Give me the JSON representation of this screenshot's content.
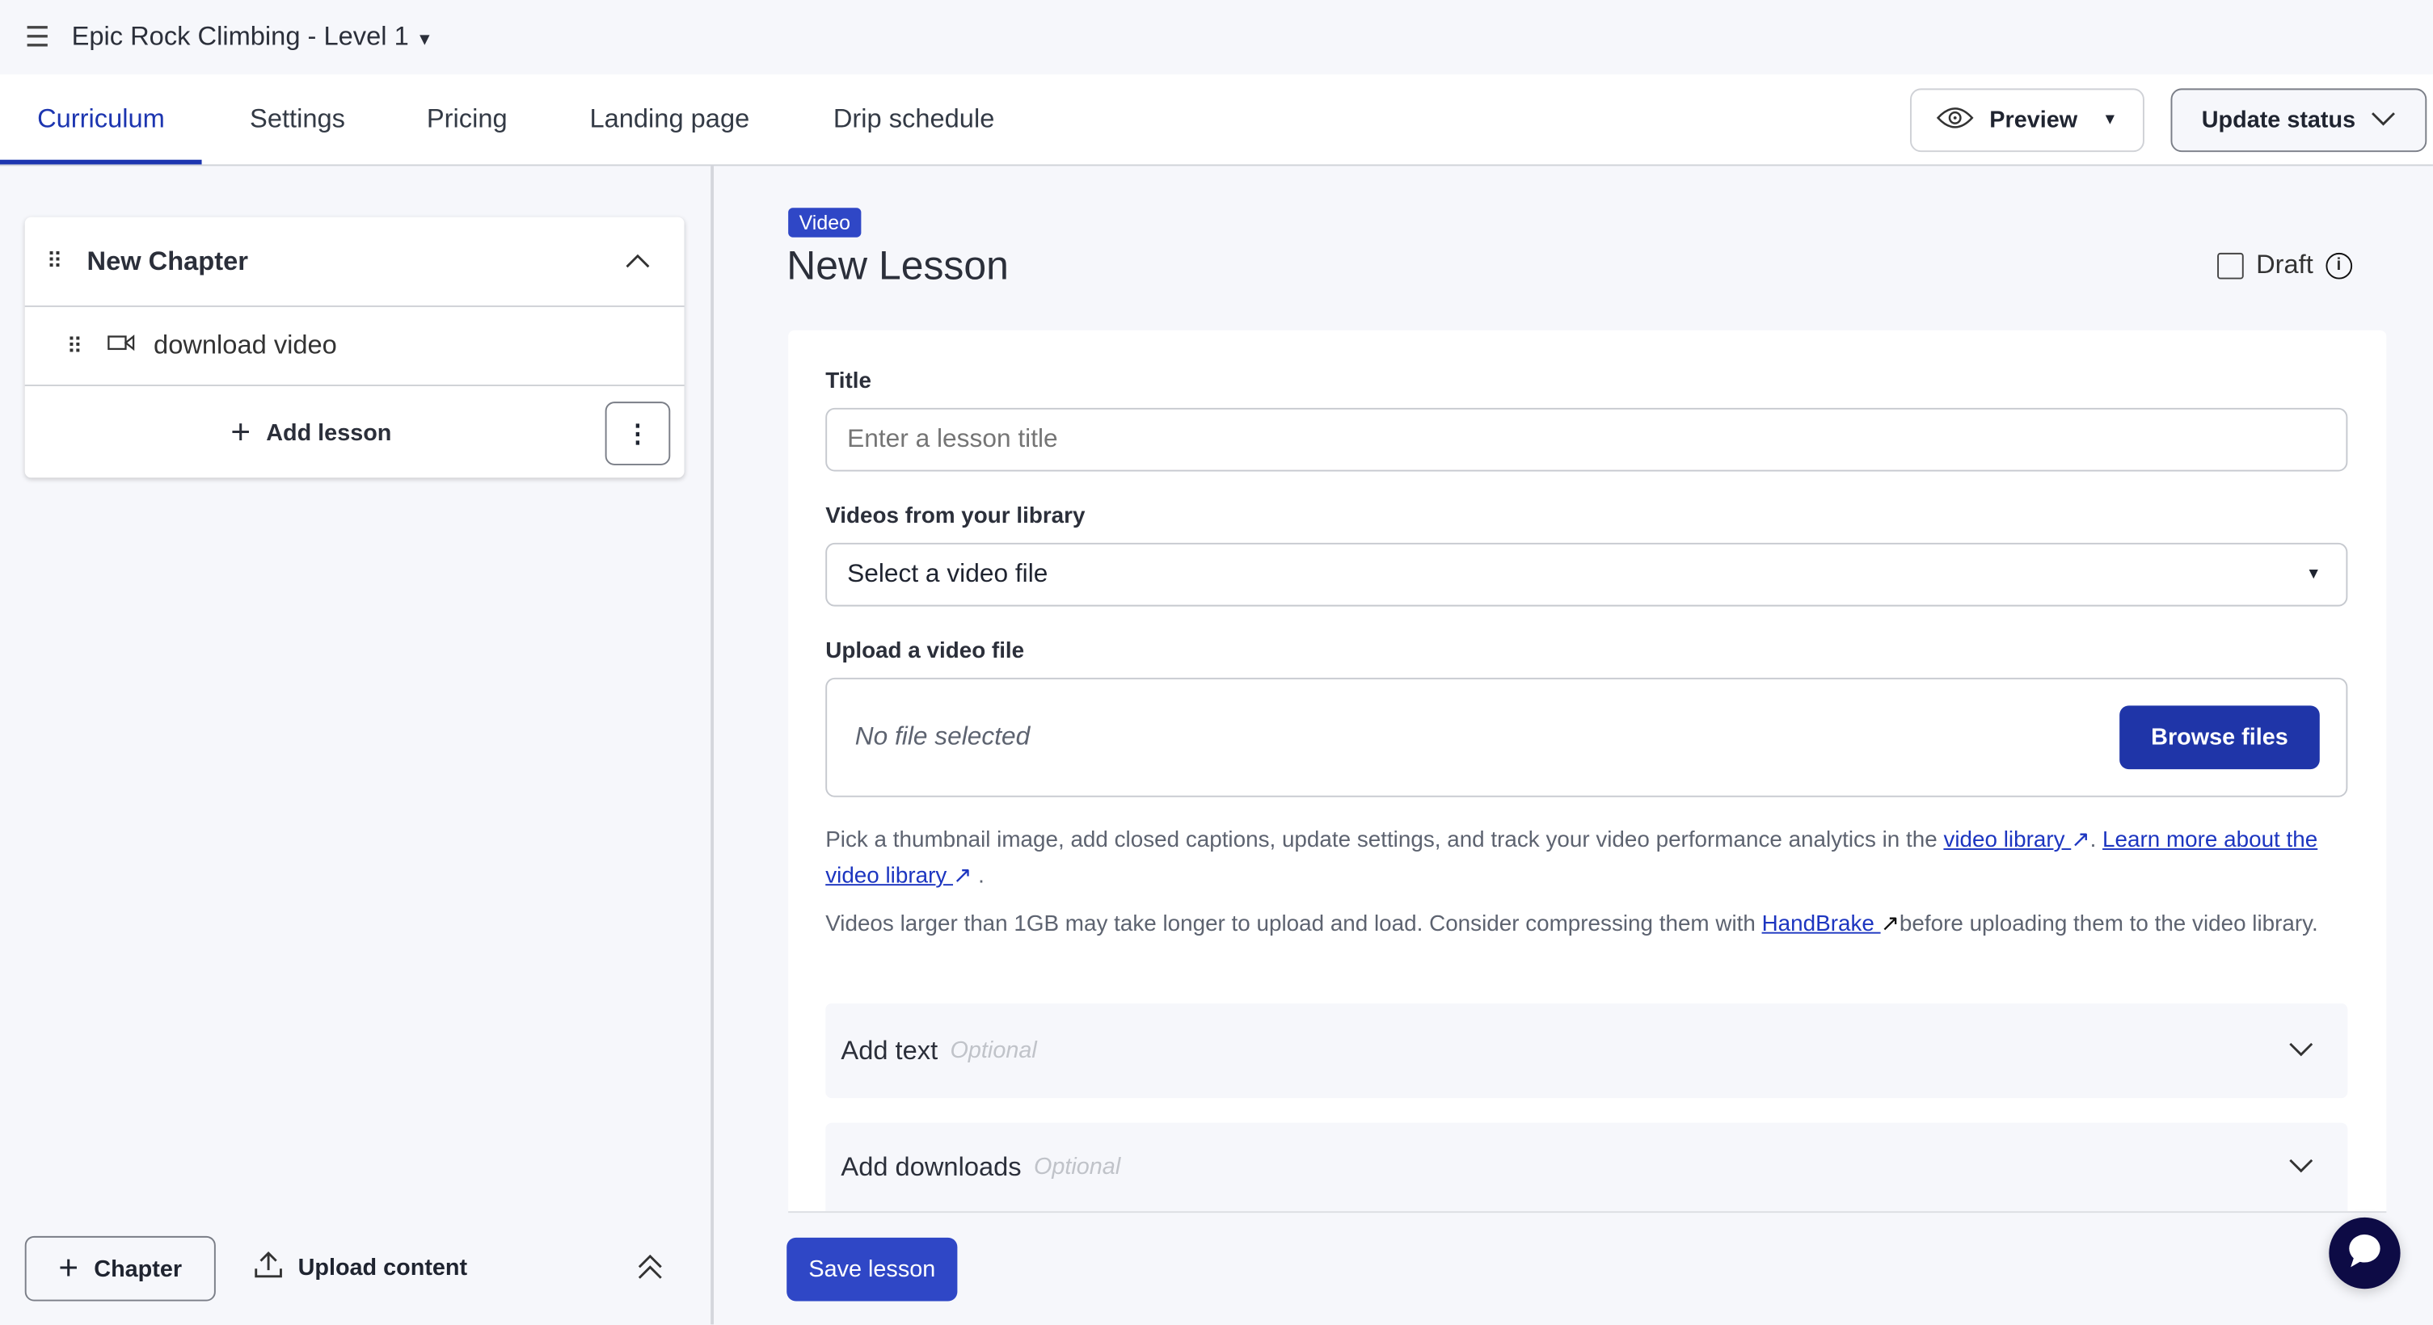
{
  "header": {
    "course_title": "Epic Rock Climbing - Level 1"
  },
  "tabs": [
    {
      "label": "Curriculum",
      "active": true
    },
    {
      "label": "Settings"
    },
    {
      "label": "Pricing"
    },
    {
      "label": "Landing page"
    },
    {
      "label": "Drip schedule"
    }
  ],
  "toolbar": {
    "preview_label": "Preview",
    "update_status_label": "Update status"
  },
  "sidebar": {
    "chapter_title": "New Chapter",
    "lessons": [
      {
        "title": "download video",
        "icon": "video-icon"
      }
    ],
    "add_lesson_label": "Add lesson",
    "add_chapter_label": "Chapter",
    "upload_content_label": "Upload content"
  },
  "lesson": {
    "type_badge": "Video",
    "title": "New Lesson",
    "draft_label": "Draft",
    "title_label": "Title",
    "title_placeholder": "Enter a lesson title",
    "library_label": "Videos from your library",
    "library_selected": "Select a video file",
    "upload_label": "Upload a video file",
    "no_file": "No file selected",
    "browse_label": "Browse files",
    "help1_a": "Pick a thumbnail image, add closed captions, update settings, and track your video performance analytics in the ",
    "help1_link1": "video library ",
    "help1_b": ". ",
    "help1_link2": "Learn more about the video library ",
    "help1_c": ".",
    "help2_a": "Videos larger than 1GB may take longer to upload and load. Consider compressing them with ",
    "help2_link": "HandBrake ",
    "help2_b": "before uploading them to the video library.",
    "add_text_label": "Add text",
    "add_downloads_label": "Add downloads",
    "optional_label": "Optional",
    "save_label": "Save lesson"
  },
  "colors": {
    "accent": "#1c35b0",
    "button": "#1f35a8",
    "chat": "#0d0b45"
  }
}
